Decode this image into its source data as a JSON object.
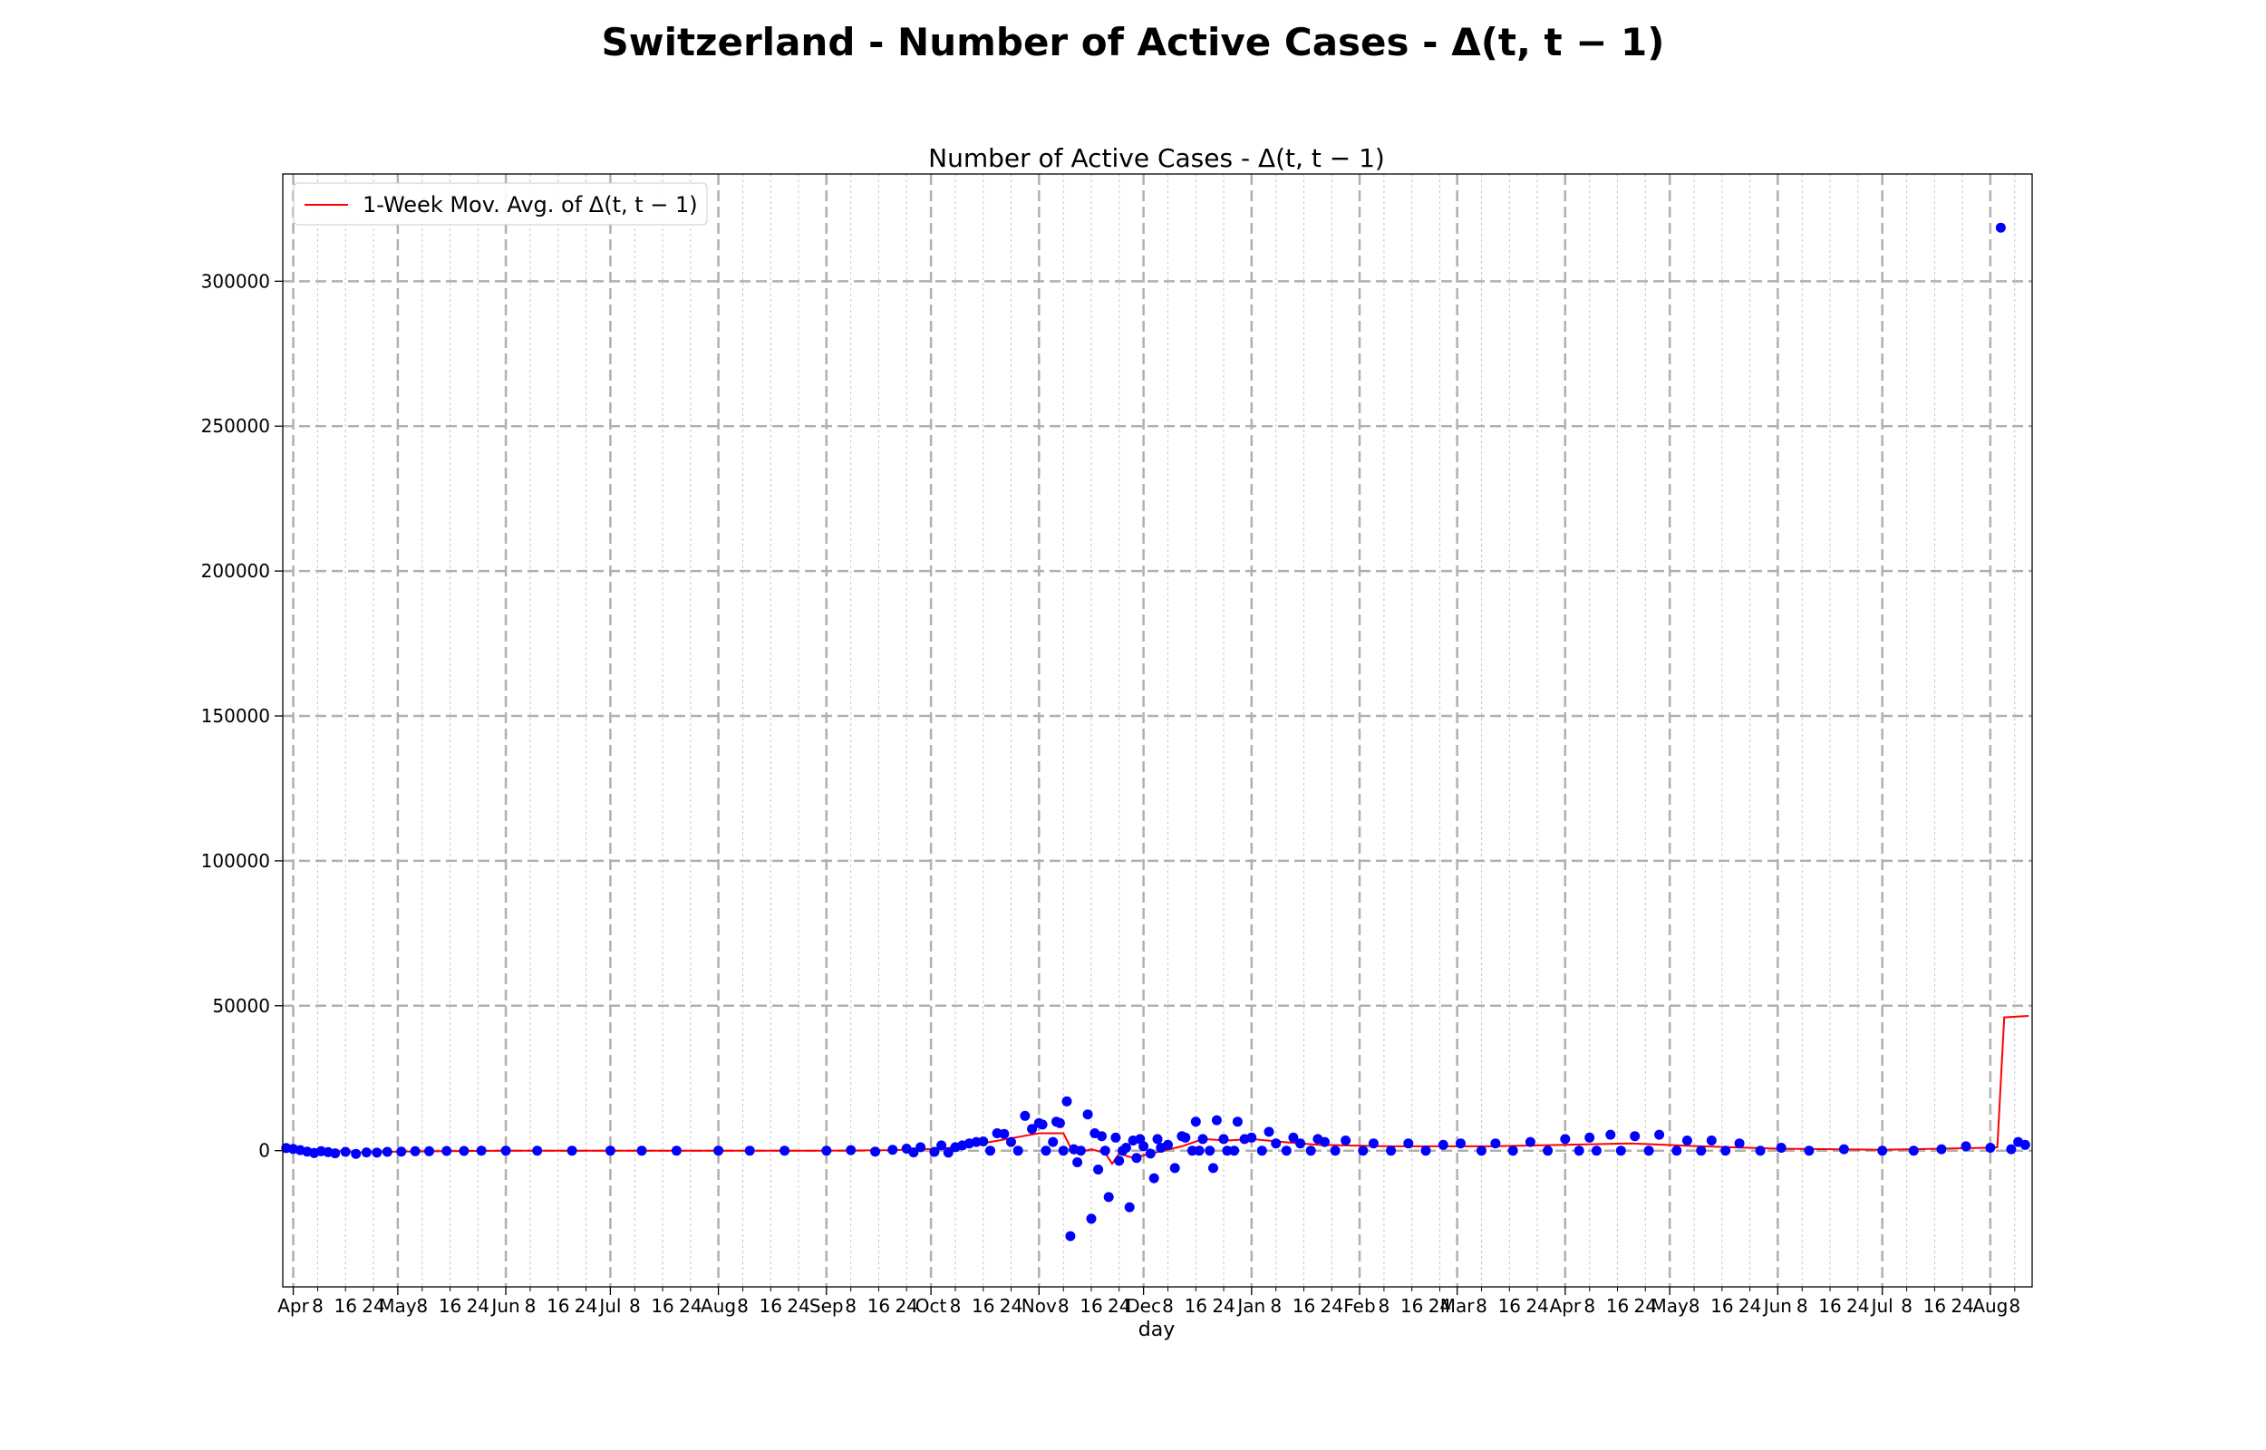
{
  "figure": {
    "suptitle": "Switzerland - Number of Active Cases - Δ(t, t − 1)"
  },
  "chart_data": {
    "type": "scatter",
    "title": "Number of Active Cases - Δ(t, t − 1)",
    "xlabel": "day",
    "ylabel": "",
    "x_range": [
      "2020-03-29",
      "2021-08-13"
    ],
    "ylim": [
      -47000,
      337000
    ],
    "yticks": [
      0,
      50000,
      100000,
      150000,
      200000,
      250000,
      300000
    ],
    "ytick_labels": [
      "0",
      "50000",
      "100000",
      "150000",
      "200000",
      "250000",
      "300000"
    ],
    "xticks_major": [
      {
        "date": "2020-04-01",
        "label": "Apr"
      },
      {
        "date": "2020-05-01",
        "label": "May"
      },
      {
        "date": "2020-06-01",
        "label": "Jun"
      },
      {
        "date": "2020-07-01",
        "label": "Jul"
      },
      {
        "date": "2020-08-01",
        "label": "Aug"
      },
      {
        "date": "2020-09-01",
        "label": "Sep"
      },
      {
        "date": "2020-10-01",
        "label": "Oct"
      },
      {
        "date": "2020-11-01",
        "label": "Nov"
      },
      {
        "date": "2020-12-01",
        "label": "Dec"
      },
      {
        "date": "2021-01-01",
        "label": "Jan"
      },
      {
        "date": "2021-02-01",
        "label": "Feb"
      },
      {
        "date": "2021-03-01",
        "label": "Mar"
      },
      {
        "date": "2021-04-01",
        "label": "Apr"
      },
      {
        "date": "2021-05-01",
        "label": "May"
      },
      {
        "date": "2021-06-01",
        "label": "Jun"
      },
      {
        "date": "2021-07-01",
        "label": "Jul"
      },
      {
        "date": "2021-08-01",
        "label": "Aug"
      }
    ],
    "xticks_minor_days": [
      "8",
      "16",
      "24"
    ],
    "grid": true,
    "legend_position": "top-left",
    "colors": {
      "points": "#0000ff",
      "moving_average": "#ff0000",
      "major_grid": "#b0b0b0",
      "minor_grid": "#c8c8c8"
    },
    "series": [
      {
        "name": "",
        "type": "scatter",
        "color": "#0000ff",
        "points": [
          [
            "2020-03-30",
            900
          ],
          [
            "2020-04-01",
            600
          ],
          [
            "2020-04-03",
            200
          ],
          [
            "2020-04-05",
            -300
          ],
          [
            "2020-04-07",
            -800
          ],
          [
            "2020-04-09",
            -200
          ],
          [
            "2020-04-11",
            -500
          ],
          [
            "2020-04-13",
            -900
          ],
          [
            "2020-04-16",
            -400
          ],
          [
            "2020-04-19",
            -1100
          ],
          [
            "2020-04-22",
            -600
          ],
          [
            "2020-04-25",
            -700
          ],
          [
            "2020-04-28",
            -400
          ],
          [
            "2020-05-02",
            -300
          ],
          [
            "2020-05-06",
            -200
          ],
          [
            "2020-05-10",
            -200
          ],
          [
            "2020-05-15",
            -100
          ],
          [
            "2020-05-20",
            -100
          ],
          [
            "2020-05-25",
            0
          ],
          [
            "2020-06-01",
            0
          ],
          [
            "2020-06-10",
            0
          ],
          [
            "2020-06-20",
            0
          ],
          [
            "2020-07-01",
            0
          ],
          [
            "2020-07-10",
            0
          ],
          [
            "2020-07-20",
            0
          ],
          [
            "2020-08-01",
            0
          ],
          [
            "2020-08-10",
            0
          ],
          [
            "2020-08-20",
            0
          ],
          [
            "2020-09-01",
            0
          ],
          [
            "2020-09-08",
            200
          ],
          [
            "2020-09-15",
            -300
          ],
          [
            "2020-09-20",
            300
          ],
          [
            "2020-09-24",
            700
          ],
          [
            "2020-09-26",
            -600
          ],
          [
            "2020-09-28",
            1200
          ],
          [
            "2020-10-02",
            -400
          ],
          [
            "2020-10-04",
            1800
          ],
          [
            "2020-10-06",
            -700
          ],
          [
            "2020-10-08",
            1200
          ],
          [
            "2020-10-10",
            1800
          ],
          [
            "2020-10-12",
            2500
          ],
          [
            "2020-10-14",
            3000
          ],
          [
            "2020-10-16",
            3200
          ],
          [
            "2020-10-18",
            0
          ],
          [
            "2020-10-20",
            6000
          ],
          [
            "2020-10-22",
            5800
          ],
          [
            "2020-10-24",
            3000
          ],
          [
            "2020-10-26",
            0
          ],
          [
            "2020-10-28",
            12000
          ],
          [
            "2020-10-30",
            7500
          ],
          [
            "2020-11-01",
            9500
          ],
          [
            "2020-11-02",
            9000
          ],
          [
            "2020-11-03",
            0
          ],
          [
            "2020-11-05",
            3000
          ],
          [
            "2020-11-06",
            10000
          ],
          [
            "2020-11-07",
            9500
          ],
          [
            "2020-11-08",
            0
          ],
          [
            "2020-11-09",
            17000
          ],
          [
            "2020-11-10",
            -29500
          ],
          [
            "2020-11-11",
            500
          ],
          [
            "2020-11-12",
            -4000
          ],
          [
            "2020-11-13",
            0
          ],
          [
            "2020-11-15",
            12500
          ],
          [
            "2020-11-16",
            -23500
          ],
          [
            "2020-11-17",
            6000
          ],
          [
            "2020-11-18",
            -6500
          ],
          [
            "2020-11-19",
            5000
          ],
          [
            "2020-11-20",
            0
          ],
          [
            "2020-11-21",
            -16000
          ],
          [
            "2020-11-23",
            4500
          ],
          [
            "2020-11-24",
            -3500
          ],
          [
            "2020-11-25",
            0
          ],
          [
            "2020-11-26",
            1000
          ],
          [
            "2020-11-27",
            -19500
          ],
          [
            "2020-11-28",
            3500
          ],
          [
            "2020-11-29",
            -2500
          ],
          [
            "2020-11-30",
            4000
          ],
          [
            "2020-12-01",
            1500
          ],
          [
            "2020-12-03",
            -1000
          ],
          [
            "2020-12-04",
            -9500
          ],
          [
            "2020-12-05",
            4000
          ],
          [
            "2020-12-06",
            1000
          ],
          [
            "2020-12-08",
            2000
          ],
          [
            "2020-12-10",
            -6000
          ],
          [
            "2020-12-12",
            5000
          ],
          [
            "2020-12-13",
            4500
          ],
          [
            "2020-12-15",
            0
          ],
          [
            "2020-12-16",
            10000
          ],
          [
            "2020-12-17",
            0
          ],
          [
            "2020-12-18",
            4000
          ],
          [
            "2020-12-20",
            0
          ],
          [
            "2020-12-21",
            -6000
          ],
          [
            "2020-12-22",
            10500
          ],
          [
            "2020-12-24",
            4000
          ],
          [
            "2020-12-25",
            0
          ],
          [
            "2020-12-27",
            0
          ],
          [
            "2020-12-28",
            10000
          ],
          [
            "2020-12-30",
            4000
          ],
          [
            "2021-01-01",
            4500
          ],
          [
            "2021-01-04",
            0
          ],
          [
            "2021-01-06",
            6500
          ],
          [
            "2021-01-08",
            2500
          ],
          [
            "2021-01-11",
            0
          ],
          [
            "2021-01-13",
            4500
          ],
          [
            "2021-01-15",
            2500
          ],
          [
            "2021-01-18",
            0
          ],
          [
            "2021-01-20",
            4000
          ],
          [
            "2021-01-22",
            3000
          ],
          [
            "2021-01-25",
            0
          ],
          [
            "2021-01-28",
            3500
          ],
          [
            "2021-02-02",
            0
          ],
          [
            "2021-02-05",
            2500
          ],
          [
            "2021-02-10",
            0
          ],
          [
            "2021-02-15",
            2500
          ],
          [
            "2021-02-20",
            0
          ],
          [
            "2021-02-25",
            2000
          ],
          [
            "2021-03-02",
            2500
          ],
          [
            "2021-03-08",
            0
          ],
          [
            "2021-03-12",
            2500
          ],
          [
            "2021-03-17",
            0
          ],
          [
            "2021-03-22",
            3000
          ],
          [
            "2021-03-27",
            0
          ],
          [
            "2021-04-01",
            4000
          ],
          [
            "2021-04-05",
            0
          ],
          [
            "2021-04-08",
            4500
          ],
          [
            "2021-04-10",
            0
          ],
          [
            "2021-04-14",
            5500
          ],
          [
            "2021-04-17",
            0
          ],
          [
            "2021-04-21",
            5000
          ],
          [
            "2021-04-25",
            0
          ],
          [
            "2021-04-28",
            5500
          ],
          [
            "2021-05-03",
            0
          ],
          [
            "2021-05-06",
            3500
          ],
          [
            "2021-05-10",
            0
          ],
          [
            "2021-05-13",
            3500
          ],
          [
            "2021-05-17",
            0
          ],
          [
            "2021-05-21",
            2500
          ],
          [
            "2021-05-27",
            0
          ],
          [
            "2021-06-02",
            1000
          ],
          [
            "2021-06-10",
            0
          ],
          [
            "2021-06-20",
            500
          ],
          [
            "2021-07-01",
            0
          ],
          [
            "2021-07-10",
            0
          ],
          [
            "2021-07-18",
            500
          ],
          [
            "2021-07-25",
            1500
          ],
          [
            "2021-08-01",
            1000
          ],
          [
            "2021-08-04",
            318500
          ],
          [
            "2021-08-07",
            500
          ],
          [
            "2021-08-09",
            3000
          ],
          [
            "2021-08-11",
            2000
          ]
        ]
      },
      {
        "name": "1-Week Mov. Avg. of Δ(t, t − 1)",
        "type": "line",
        "color": "#ff0000",
        "points": [
          [
            "2020-03-30",
            1000
          ],
          [
            "2020-04-10",
            100
          ],
          [
            "2020-04-20",
            -600
          ],
          [
            "2020-05-01",
            -300
          ],
          [
            "2020-06-01",
            0
          ],
          [
            "2020-09-01",
            0
          ],
          [
            "2020-09-20",
            200
          ],
          [
            "2020-10-01",
            600
          ],
          [
            "2020-10-10",
            1200
          ],
          [
            "2020-10-18",
            3000
          ],
          [
            "2020-10-25",
            4500
          ],
          [
            "2020-11-01",
            6000
          ],
          [
            "2020-11-08",
            6000
          ],
          [
            "2020-11-11",
            -1000
          ],
          [
            "2020-11-16",
            500
          ],
          [
            "2020-11-20",
            -800
          ],
          [
            "2020-11-22",
            -4500
          ],
          [
            "2020-11-24",
            -1000
          ],
          [
            "2020-11-28",
            -2500
          ],
          [
            "2020-12-05",
            -500
          ],
          [
            "2020-12-12",
            1500
          ],
          [
            "2020-12-18",
            4000
          ],
          [
            "2020-12-25",
            3500
          ],
          [
            "2021-01-01",
            4000
          ],
          [
            "2021-01-10",
            3000
          ],
          [
            "2021-01-20",
            2000
          ],
          [
            "2021-02-10",
            1500
          ],
          [
            "2021-03-10",
            1500
          ],
          [
            "2021-04-01",
            2000
          ],
          [
            "2021-04-20",
            2500
          ],
          [
            "2021-05-10",
            1500
          ],
          [
            "2021-06-01",
            700
          ],
          [
            "2021-07-01",
            300
          ],
          [
            "2021-08-01",
            1000
          ],
          [
            "2021-08-03",
            1200
          ],
          [
            "2021-08-05",
            46000
          ],
          [
            "2021-08-12",
            46500
          ]
        ]
      }
    ]
  }
}
